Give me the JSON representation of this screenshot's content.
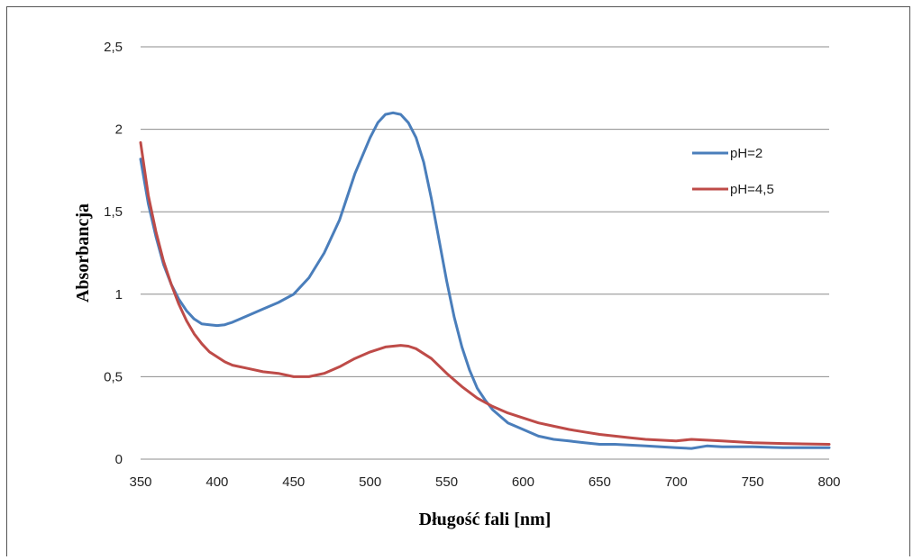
{
  "chart_data": {
    "type": "line",
    "title": "",
    "xlabel": "Długość fali [nm]",
    "ylabel": "Absorbancja",
    "xlim": [
      350,
      800
    ],
    "ylim": [
      0,
      2.5
    ],
    "x_ticks": [
      350,
      400,
      450,
      500,
      550,
      600,
      650,
      700,
      750,
      800
    ],
    "x_tick_labels": [
      "350",
      "400",
      "450",
      "500",
      "550",
      "600",
      "650",
      "700",
      "750",
      "800"
    ],
    "y_ticks": [
      0,
      0.5,
      1,
      1.5,
      2,
      2.5
    ],
    "y_tick_labels": [
      "0",
      "0,5",
      "1",
      "1,5",
      "2",
      "2,5"
    ],
    "grid": "horizontal",
    "legend_position": "right",
    "series": [
      {
        "name": "pH=2",
        "color": "#4a7ebb",
        "x": [
          350,
          355,
          360,
          365,
          370,
          375,
          380,
          385,
          390,
          395,
          400,
          405,
          410,
          415,
          420,
          430,
          440,
          450,
          460,
          470,
          480,
          490,
          500,
          505,
          510,
          515,
          520,
          525,
          530,
          535,
          540,
          545,
          550,
          555,
          560,
          565,
          570,
          575,
          580,
          585,
          590,
          600,
          610,
          620,
          630,
          640,
          650,
          660,
          670,
          680,
          690,
          700,
          710,
          720,
          730,
          750,
          770,
          800
        ],
        "y": [
          1.82,
          1.55,
          1.35,
          1.18,
          1.06,
          0.97,
          0.9,
          0.85,
          0.82,
          0.815,
          0.81,
          0.815,
          0.83,
          0.85,
          0.87,
          0.91,
          0.95,
          1.0,
          1.1,
          1.25,
          1.45,
          1.73,
          1.95,
          2.04,
          2.09,
          2.1,
          2.09,
          2.04,
          1.95,
          1.8,
          1.58,
          1.33,
          1.08,
          0.86,
          0.68,
          0.54,
          0.43,
          0.36,
          0.3,
          0.26,
          0.22,
          0.18,
          0.14,
          0.12,
          0.11,
          0.1,
          0.09,
          0.09,
          0.085,
          0.08,
          0.075,
          0.07,
          0.065,
          0.08,
          0.075,
          0.075,
          0.07,
          0.07
        ]
      },
      {
        "name": "pH=4,5",
        "color": "#be4b48",
        "x": [
          350,
          355,
          360,
          365,
          370,
          375,
          380,
          385,
          390,
          395,
          400,
          405,
          410,
          420,
          430,
          440,
          450,
          460,
          470,
          480,
          490,
          500,
          510,
          515,
          520,
          525,
          530,
          540,
          550,
          560,
          570,
          580,
          590,
          600,
          610,
          620,
          630,
          640,
          650,
          660,
          670,
          680,
          690,
          700,
          710,
          720,
          730,
          750,
          770,
          800
        ],
        "y": [
          1.92,
          1.6,
          1.38,
          1.2,
          1.06,
          0.94,
          0.84,
          0.76,
          0.7,
          0.65,
          0.62,
          0.59,
          0.57,
          0.55,
          0.53,
          0.52,
          0.5,
          0.5,
          0.52,
          0.56,
          0.61,
          0.65,
          0.68,
          0.685,
          0.69,
          0.685,
          0.67,
          0.61,
          0.52,
          0.44,
          0.37,
          0.32,
          0.28,
          0.25,
          0.22,
          0.2,
          0.18,
          0.165,
          0.15,
          0.14,
          0.13,
          0.12,
          0.115,
          0.11,
          0.12,
          0.115,
          0.11,
          0.1,
          0.095,
          0.09
        ]
      }
    ]
  }
}
